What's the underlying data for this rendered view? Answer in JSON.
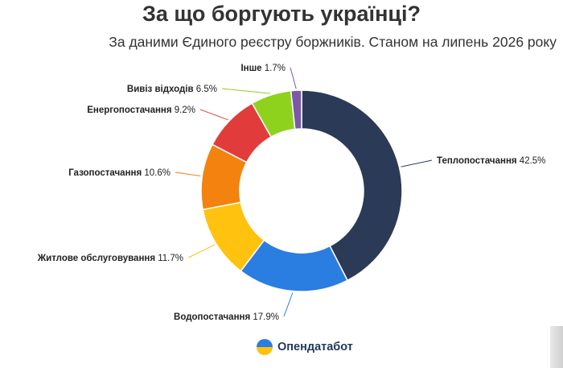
{
  "chart_data": {
    "type": "pie",
    "variant": "donut",
    "title": "За що боргують українці?",
    "subtitle": "За даними Єдиного реєстру боржників. Станом на липень 2026 року",
    "slices": [
      {
        "label": "Теплопостачання",
        "value": 42.5,
        "value_text": "42.5%",
        "color": "#2b3a56"
      },
      {
        "label": "Водопостачання",
        "value": 17.9,
        "value_text": "17.9%",
        "color": "#2a7de1"
      },
      {
        "label": "Житлове обслуговування",
        "value": 11.7,
        "value_text": "11.7%",
        "color": "#ffc20e"
      },
      {
        "label": "Газопостачання",
        "value": 10.6,
        "value_text": "10.6%",
        "color": "#f3820f"
      },
      {
        "label": "Енергопостачання",
        "value": 9.2,
        "value_text": "9.2%",
        "color": "#e23b3b"
      },
      {
        "label": "Вивіз відходів",
        "value": 6.5,
        "value_text": "6.5%",
        "color": "#8ed21e"
      },
      {
        "label": "Інше",
        "value": 1.7,
        "value_text": "1.7%",
        "color": "#7a5aa6"
      }
    ]
  },
  "brand": {
    "name": "Опендатабот",
    "logo_colors": [
      "#2a7de1",
      "#ffc20e"
    ]
  }
}
